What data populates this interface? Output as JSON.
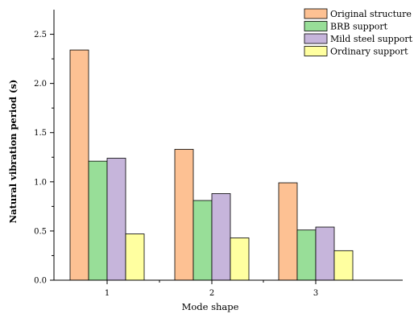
{
  "chart_data": {
    "type": "bar",
    "title": "",
    "xlabel": "Mode shape",
    "ylabel": "Natural vibration period  (s)",
    "categories": [
      "1",
      "2",
      "3"
    ],
    "ylim": [
      0,
      2.75
    ],
    "yticks": [
      0.0,
      0.5,
      1.0,
      1.5,
      2.0,
      2.5
    ],
    "ytick_labels": [
      "0.0",
      "0.5",
      "1.0",
      "1.5",
      "2.0",
      "2.5"
    ],
    "grid": false,
    "legend_position": "top-right",
    "series": [
      {
        "name": "Original structure",
        "color": "#FDC193",
        "values": [
          2.34,
          1.33,
          0.99
        ]
      },
      {
        "name": "BRB support",
        "color": "#98DE98",
        "values": [
          1.21,
          0.81,
          0.51
        ]
      },
      {
        "name": "Mild steel support",
        "color": "#C6B5DB",
        "values": [
          1.24,
          0.88,
          0.54
        ]
      },
      {
        "name": "Ordinary support",
        "color": "#FFFFA0",
        "values": [
          0.47,
          0.43,
          0.3
        ]
      }
    ]
  }
}
